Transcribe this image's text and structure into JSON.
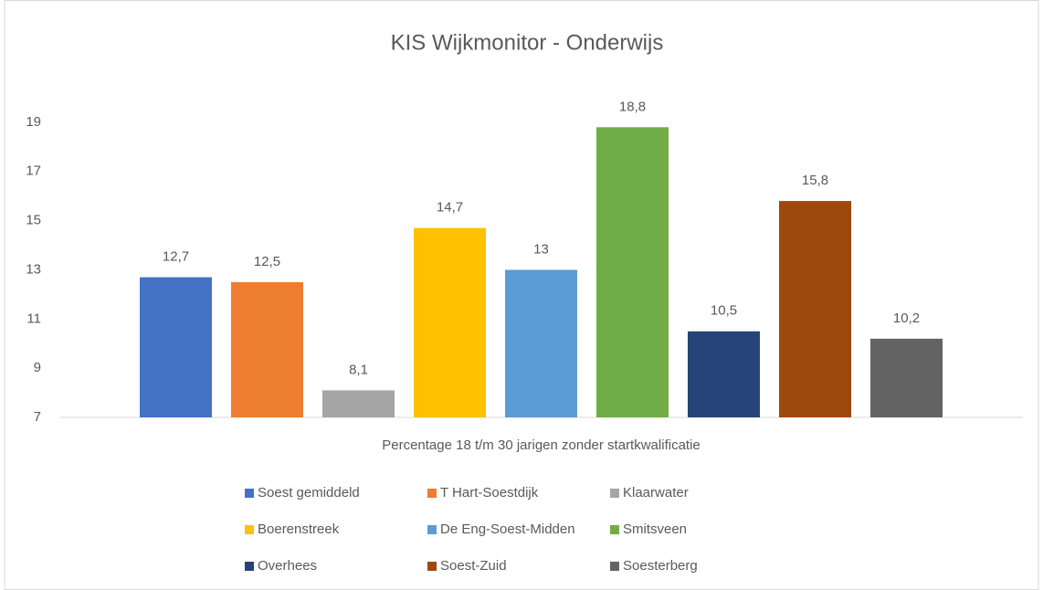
{
  "chart_data": {
    "type": "bar",
    "title": "KIS Wijkmonitor - Onderwijs",
    "categories": [
      "Percentage 18 t/m 30 jarigen zonder startkwalificatie"
    ],
    "series": [
      {
        "name": "Soest gemiddeld",
        "color": "#4472c4",
        "values": [
          12.7
        ],
        "value_labels": [
          "12,7"
        ]
      },
      {
        "name": "T Hart-Soestdijk",
        "color": "#ed7d31",
        "values": [
          12.5
        ],
        "value_labels": [
          "12,5"
        ]
      },
      {
        "name": "Klaarwater",
        "color": "#a5a5a5",
        "values": [
          8.1
        ],
        "value_labels": [
          "8,1"
        ]
      },
      {
        "name": "Boerenstreek",
        "color": "#ffc000",
        "values": [
          14.7
        ],
        "value_labels": [
          "14,7"
        ]
      },
      {
        "name": "De Eng-Soest-Midden",
        "color": "#5b9bd5",
        "values": [
          13
        ],
        "value_labels": [
          "13"
        ]
      },
      {
        "name": "Smitsveen",
        "color": "#70ad47",
        "values": [
          18.8
        ],
        "value_labels": [
          "18,8"
        ]
      },
      {
        "name": "Overhees",
        "color": "#264478",
        "values": [
          10.5
        ],
        "value_labels": [
          "10,5"
        ]
      },
      {
        "name": "Soest-Zuid",
        "color": "#9e480e",
        "values": [
          15.8
        ],
        "value_labels": [
          "15,8"
        ]
      },
      {
        "name": "Soesterberg",
        "color": "#636363",
        "values": [
          10.2
        ],
        "value_labels": [
          "10,2"
        ]
      }
    ],
    "ylim": [
      7,
      20
    ],
    "yticks": [
      7,
      9,
      11,
      13,
      15,
      17,
      19
    ],
    "grid": false,
    "legend": "bottom"
  }
}
